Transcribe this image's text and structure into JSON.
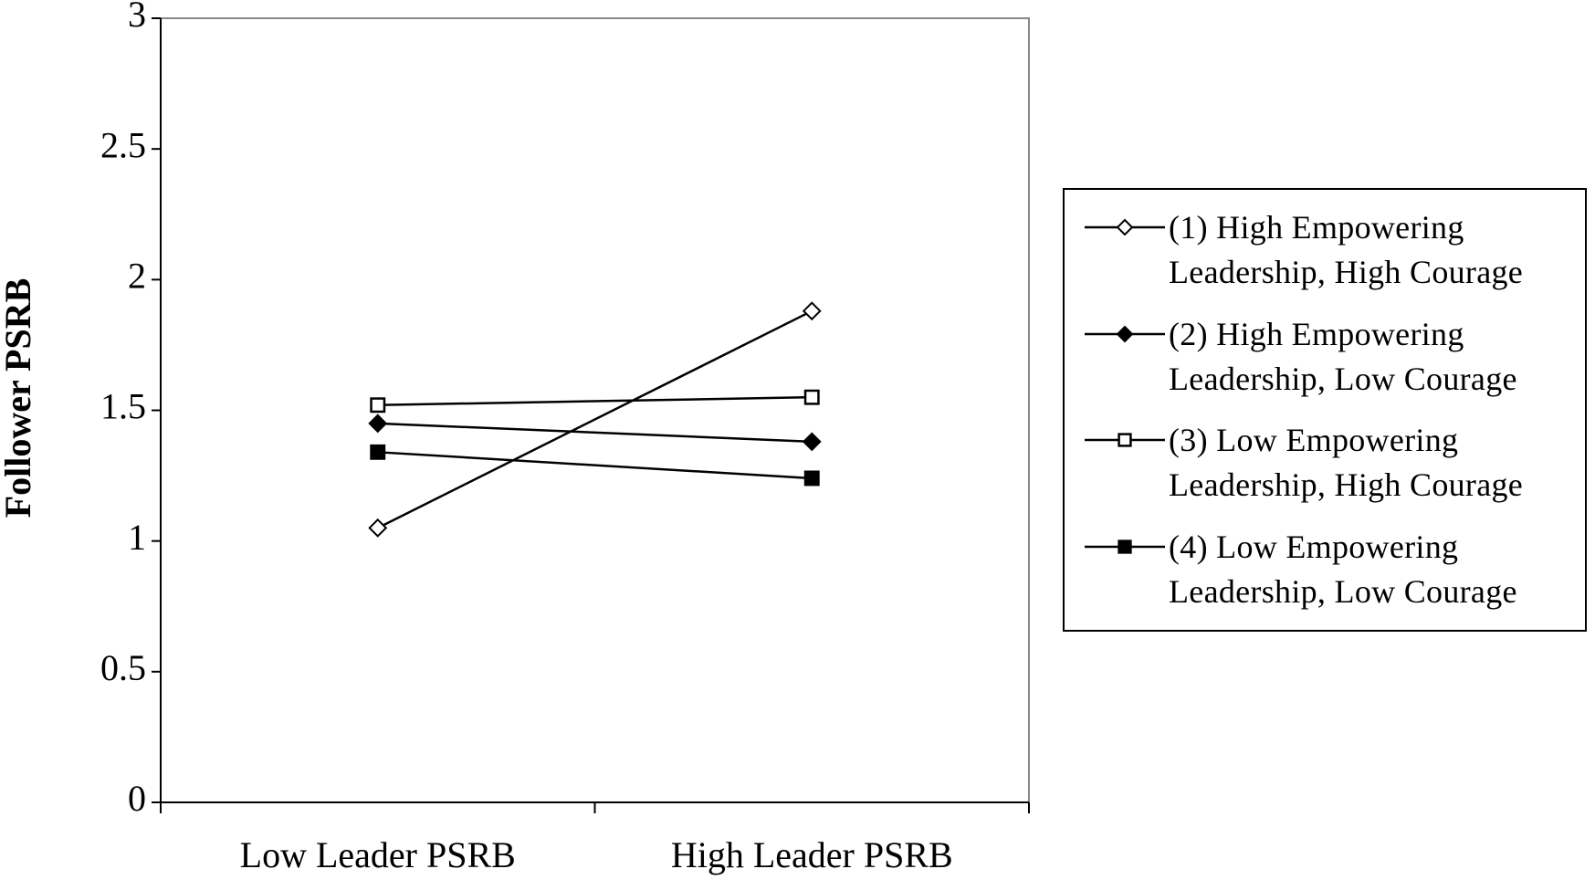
{
  "chart_data": {
    "type": "line",
    "y_label": "Follower PSRB",
    "categories": [
      "Low Leader PSRB",
      "High Leader PSRB"
    ],
    "series": [
      {
        "name": "(1) High Empowering Leadership, High Courage",
        "color": "#000000",
        "marker": "diamond",
        "filled": false,
        "values": [
          1.05,
          1.88
        ]
      },
      {
        "name": "(2) High Empowering Leadership, Low Courage",
        "color": "#000000",
        "marker": "diamond",
        "filled": true,
        "values": [
          1.45,
          1.38
        ]
      },
      {
        "name": "(3) Low Empowering Leadership, High Courage",
        "color": "#000000",
        "marker": "square",
        "filled": false,
        "values": [
          1.52,
          1.55
        ]
      },
      {
        "name": "(4) Low Empowering Leadership, Low Courage",
        "color": "#000000",
        "marker": "square",
        "filled": true,
        "values": [
          1.34,
          1.24
        ]
      }
    ],
    "ylim": [
      0,
      3
    ],
    "yticks": [
      0,
      0.5,
      1,
      1.5,
      2,
      2.5,
      3
    ],
    "grid": false,
    "legend": "right"
  }
}
